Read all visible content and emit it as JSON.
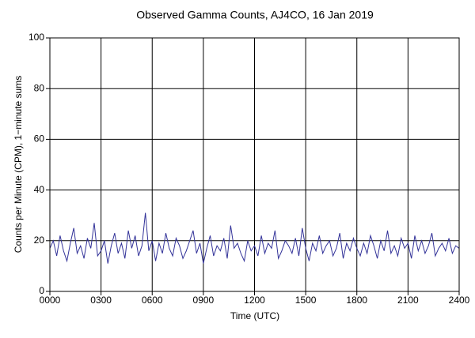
{
  "chart_data": {
    "type": "line",
    "title": "Observed Gamma Counts, AJ4CO, 16 Jan 2019",
    "xlabel": "Time (UTC)",
    "ylabel": "Counts per Minute (CPM), 1−minute sums",
    "x": [
      0,
      0.2,
      0.4,
      0.6,
      0.8,
      1,
      1.2,
      1.4,
      1.6,
      1.8,
      2,
      2.2,
      2.4,
      2.6,
      2.8,
      3,
      3.2,
      3.4,
      3.6,
      3.8,
      4,
      4.2,
      4.4,
      4.6,
      4.8,
      5,
      5.2,
      5.4,
      5.6,
      5.8,
      6,
      6.2,
      6.4,
      6.6,
      6.8,
      7,
      7.2,
      7.4,
      7.6,
      7.8,
      8,
      8.2,
      8.4,
      8.6,
      8.8,
      9,
      9.2,
      9.4,
      9.6,
      9.8,
      10,
      10.2,
      10.4,
      10.6,
      10.8,
      11,
      11.2,
      11.4,
      11.6,
      11.8,
      12,
      12.2,
      12.4,
      12.6,
      12.8,
      13,
      13.2,
      13.4,
      13.6,
      13.8,
      14,
      14.2,
      14.4,
      14.6,
      14.8,
      15,
      15.2,
      15.4,
      15.6,
      15.8,
      16,
      16.2,
      16.4,
      16.6,
      16.8,
      17,
      17.2,
      17.4,
      17.6,
      17.8,
      18,
      18.2,
      18.4,
      18.6,
      18.8,
      19,
      19.2,
      19.4,
      19.6,
      19.8,
      20,
      20.2,
      20.4,
      20.6,
      20.8,
      21,
      21.2,
      21.4,
      21.6,
      21.8,
      22,
      22.2,
      22.4,
      22.6,
      22.8,
      23,
      23.2,
      23.4,
      23.6,
      23.8,
      24
    ],
    "values": [
      17,
      20,
      14,
      22,
      16,
      12,
      19,
      25,
      15,
      18,
      13,
      21,
      17,
      27,
      14,
      16,
      20,
      11,
      18,
      23,
      15,
      19,
      13,
      24,
      17,
      22,
      14,
      18,
      31,
      16,
      20,
      12,
      19,
      15,
      23,
      17,
      14,
      21,
      18,
      13,
      16,
      20,
      24,
      15,
      19,
      11,
      17,
      22,
      14,
      18,
      16,
      21,
      13,
      26,
      17,
      19,
      15,
      12,
      20,
      16,
      18,
      14,
      22,
      15,
      19,
      17,
      24,
      13,
      16,
      20,
      18,
      15,
      21,
      14,
      25,
      17,
      12,
      19,
      16,
      22,
      15,
      18,
      20,
      14,
      17,
      23,
      13,
      19,
      16,
      21,
      17,
      14,
      19,
      15,
      22,
      18,
      13,
      20,
      16,
      24,
      15,
      18,
      14,
      21,
      17,
      19,
      13,
      22,
      16,
      20,
      15,
      18,
      23,
      14,
      17,
      19,
      16,
      21,
      15,
      18,
      17
    ],
    "color": "#333399",
    "xlim": [
      0,
      24
    ],
    "ylim": [
      0,
      100
    ],
    "xticks": [
      {
        "value": 0,
        "label": "0000"
      },
      {
        "value": 3,
        "label": "0300"
      },
      {
        "value": 6,
        "label": "0600"
      },
      {
        "value": 9,
        "label": "0900"
      },
      {
        "value": 12,
        "label": "1200"
      },
      {
        "value": 15,
        "label": "1500"
      },
      {
        "value": 18,
        "label": "1800"
      },
      {
        "value": 21,
        "label": "2100"
      },
      {
        "value": 24,
        "label": "2400"
      }
    ],
    "yticks": [
      0,
      20,
      40,
      60,
      80,
      100
    ],
    "grid": true
  }
}
